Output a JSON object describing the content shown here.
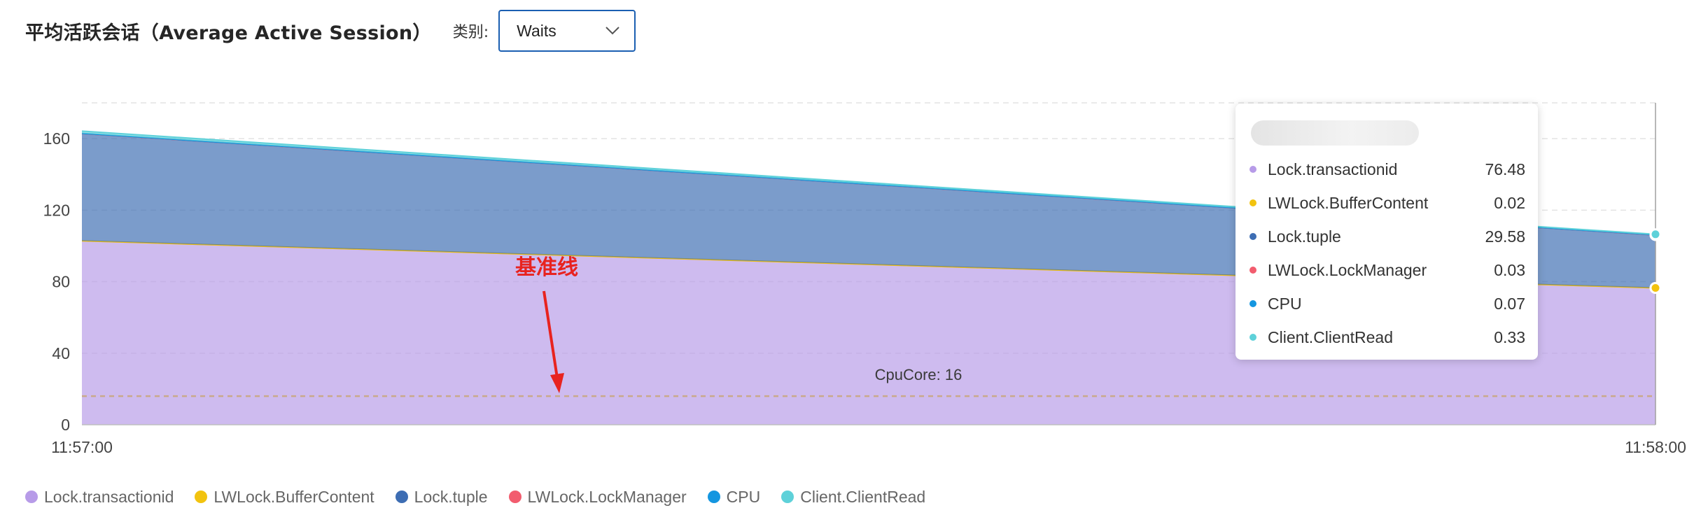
{
  "header": {
    "title": "平均活跃会话（Average Active Session）",
    "category_label": "类别:",
    "category_value": "Waits"
  },
  "chart_data": {
    "type": "area",
    "stacked": true,
    "x": [
      "11:57:00",
      "11:58:00"
    ],
    "ylim": [
      0,
      180
    ],
    "yticks": [
      0,
      40,
      80,
      120,
      160
    ],
    "grid": true,
    "legend_position": "bottom",
    "series": [
      {
        "name": "Lock.transactionid",
        "color": "#b79be8",
        "values": [
          102.8,
          76.48
        ]
      },
      {
        "name": "LWLock.BufferContent",
        "color": "#f2c30f",
        "values": [
          0.02,
          0.02
        ]
      },
      {
        "name": "Lock.tuple",
        "color": "#3d6db3",
        "values": [
          60,
          29.58
        ]
      },
      {
        "name": "LWLock.LockManager",
        "color": "#f25c6e",
        "values": [
          0.03,
          0.03
        ]
      },
      {
        "name": "CPU",
        "color": "#1496e0",
        "values": [
          0.07,
          0.07
        ]
      },
      {
        "name": "Client.ClientRead",
        "color": "#5ed1d9",
        "values": [
          1.3,
          0.33
        ]
      }
    ],
    "reference_line": {
      "label": "CpuCore: 16",
      "value": 16
    },
    "annotation": {
      "text": "基准线",
      "color": "#e8231f"
    }
  },
  "tooltip": {
    "items": [
      {
        "name": "Lock.transactionid",
        "value": "76.48",
        "color": "#b79be8"
      },
      {
        "name": "LWLock.BufferContent",
        "value": "0.02",
        "color": "#f2c30f"
      },
      {
        "name": "Lock.tuple",
        "value": "29.58",
        "color": "#3d6db3"
      },
      {
        "name": "LWLock.LockManager",
        "value": "0.03",
        "color": "#f25c6e"
      },
      {
        "name": "CPU",
        "value": "0.07",
        "color": "#1496e0"
      },
      {
        "name": "Client.ClientRead",
        "value": "0.33",
        "color": "#5ed1d9"
      }
    ]
  },
  "legend": {
    "items": [
      {
        "name": "Lock.transactionid",
        "color": "#b79be8"
      },
      {
        "name": "LWLock.BufferContent",
        "color": "#f2c30f"
      },
      {
        "name": "Lock.tuple",
        "color": "#3d6db3"
      },
      {
        "name": "LWLock.LockManager",
        "color": "#f25c6e"
      },
      {
        "name": "CPU",
        "color": "#1496e0"
      },
      {
        "name": "Client.ClientRead",
        "color": "#5ed1d9"
      }
    ]
  }
}
